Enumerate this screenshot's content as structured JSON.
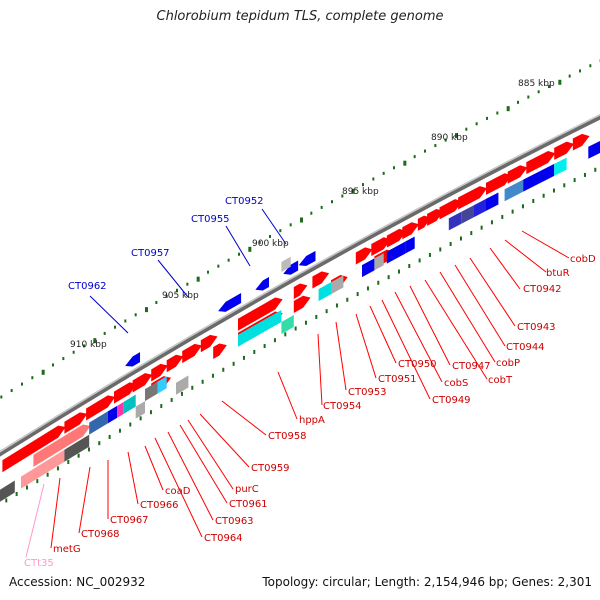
{
  "title": "Chlorobium tepidum TLS, complete genome",
  "footer": {
    "accession": "Accession: NC_002932",
    "summary": "Topology: circular; Length: 2,154,946 bp; Genes: 2,301"
  },
  "colors": {
    "forward_cds": "#ff0000",
    "reverse_cds": "#0000ff",
    "highlight_label": "#0000cc",
    "trna": "#ff99cc",
    "backbone": "#888888",
    "tick": "#1a6b1a"
  },
  "scale_labels": [
    "885 kbp",
    "890 kbp",
    "895 kbp",
    "900 kbp",
    "905 kbp",
    "910 kbp"
  ],
  "forward_labels": [
    "CT0962",
    "CT0957",
    "CT0955",
    "CT0952"
  ],
  "reverse_labels": [
    "cobD",
    "btuR",
    "CT0942",
    "CT0943",
    "CT0944",
    "cobP",
    "cobT",
    "CT0947",
    "cobS",
    "CT0949",
    "CT0950",
    "CT0951",
    "CT0953",
    "CT0954",
    "hppA",
    "CT0958",
    "CT0959",
    "purC",
    "CT0961",
    "CT0963",
    "CT0964",
    "coaD",
    "CT0966",
    "CT0967",
    "CT0968",
    "metG",
    "CTt35"
  ]
}
